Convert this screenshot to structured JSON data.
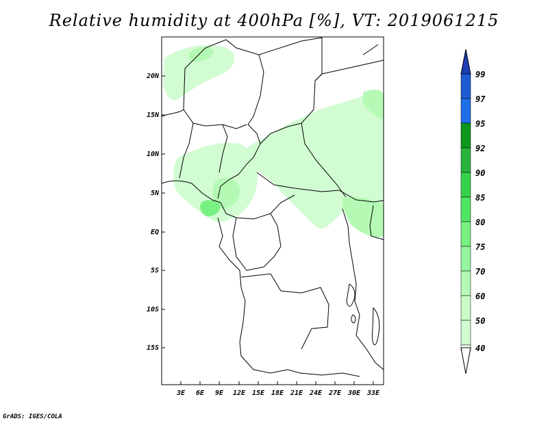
{
  "title": "Relative humidity at 400hPa [%], VT: 2019061215",
  "credit": "GrADS: IGES/COLA",
  "map": {
    "lat_labels": [
      "20N",
      "15N",
      "10N",
      "5N",
      "EQ",
      "5S",
      "10S",
      "15S"
    ],
    "lon_labels": [
      "3E",
      "6E",
      "9E",
      "12E",
      "15E",
      "18E",
      "21E",
      "24E",
      "27E",
      "30E",
      "33E"
    ]
  },
  "colorbar": {
    "labels": [
      "99",
      "97",
      "95",
      "92",
      "90",
      "85",
      "80",
      "75",
      "70",
      "60",
      "50",
      "40"
    ],
    "colors": [
      "#1e5ad2",
      "#1e6ee6",
      "#3c96f5",
      "#0f961e",
      "#28b43c",
      "#37d24b",
      "#50e664",
      "#78f082",
      "#96f5a0",
      "#b4fab4",
      "#d2fcd2",
      "#f0fff0"
    ],
    "top_color": "#1e3cb4"
  },
  "colors": {
    "land_outline": "#000000",
    "green_light": "#d2fcd2",
    "green_mid": "#b4fab4",
    "green_dark": "#78f082"
  }
}
